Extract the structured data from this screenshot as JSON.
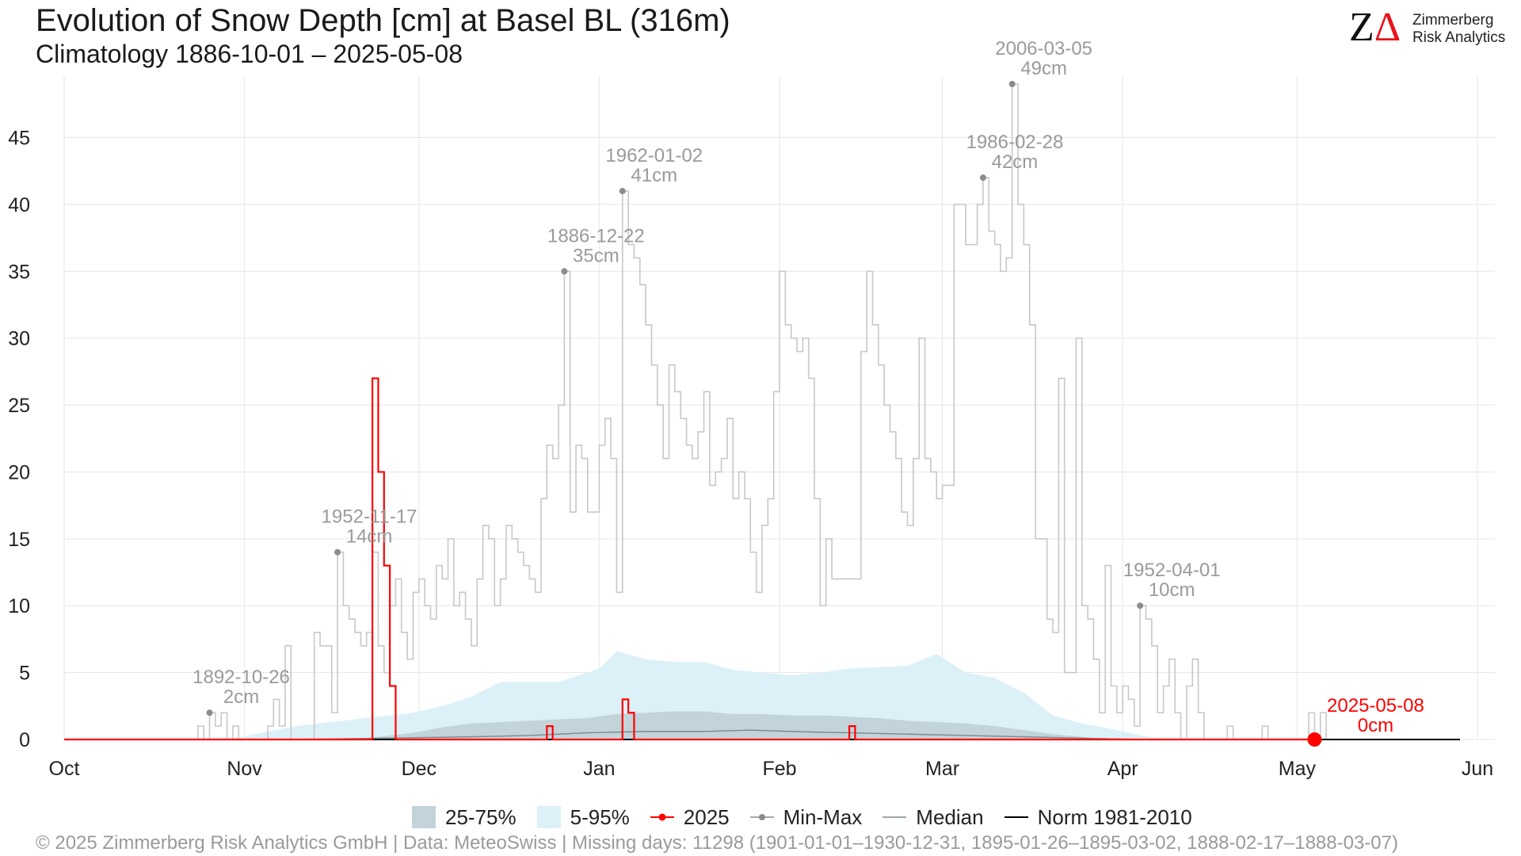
{
  "header": {
    "title": "Evolution of Snow Depth [cm] at Basel  BL (316m)",
    "subtitle": "Climatology 1886-10-01 – 2025-05-08"
  },
  "logo": {
    "line1": "Zimmerberg",
    "line2": "Risk Analytics"
  },
  "legend": {
    "iqr_label": "25-75%",
    "p90_label": "5-95%",
    "current_label": "2025",
    "minmax_label": "Min-Max",
    "median_label": "Median",
    "norm_label": "Norm 1981-2010"
  },
  "footer": {
    "text": "©  2025 Zimmerberg Risk Analytics GmbH | Data: MeteoSwiss | Missing days: 11298 (1901-01-01–1930-12-31, 1895-01-26–1895-03-02, 1888-02-17–1888-03-07)"
  },
  "colors": {
    "current": "#ff0000",
    "minmax": "#c8c8c8",
    "minmax_point": "#8c8c8c",
    "annotation": "#9a9a9a",
    "iqr_band": "#c2d3d9",
    "p90_band": "#dcf0f7",
    "median": "#7a8a8e",
    "norm": "#000000",
    "grid": "#e6e6e6"
  },
  "chart_data": {
    "type": "line",
    "x_unit": "day of season (0 = Oct 1)",
    "x_ticks": [
      {
        "label": "Oct",
        "x": 0
      },
      {
        "label": "Nov",
        "x": 31
      },
      {
        "label": "Dec",
        "x": 61
      },
      {
        "label": "Jan",
        "x": 92
      },
      {
        "label": "Feb",
        "x": 123
      },
      {
        "label": "Mar",
        "x": 151
      },
      {
        "label": "Apr",
        "x": 182
      },
      {
        "label": "May",
        "x": 212
      },
      {
        "label": "Jun",
        "x": 243
      }
    ],
    "xlim": [
      0,
      246
    ],
    "ylim": [
      0,
      49
    ],
    "y_ticks": [
      0,
      5,
      10,
      15,
      20,
      25,
      30,
      35,
      40,
      45
    ],
    "grid": true,
    "legend_position": "bottom",
    "series": [
      {
        "name": "Min-Max",
        "kind": "step",
        "points": [
          [
            22,
            0
          ],
          [
            23,
            1
          ],
          [
            24,
            0
          ],
          [
            25,
            2
          ],
          [
            26,
            1
          ],
          [
            27,
            2
          ],
          [
            28,
            0
          ],
          [
            29,
            1
          ],
          [
            30,
            0
          ],
          [
            35,
            1
          ],
          [
            36,
            3
          ],
          [
            37,
            1
          ],
          [
            38,
            7
          ],
          [
            39,
            0
          ],
          [
            43,
            8
          ],
          [
            44,
            7
          ],
          [
            45,
            7
          ],
          [
            46,
            2
          ],
          [
            47,
            14
          ],
          [
            48,
            10
          ],
          [
            49,
            9
          ],
          [
            50,
            8
          ],
          [
            51,
            7
          ],
          [
            52,
            8
          ],
          [
            53,
            14
          ],
          [
            54,
            7
          ],
          [
            55,
            5
          ],
          [
            56,
            10
          ],
          [
            57,
            12
          ],
          [
            58,
            8
          ],
          [
            59,
            6
          ],
          [
            60,
            11
          ],
          [
            61,
            12
          ],
          [
            62,
            10
          ],
          [
            63,
            9
          ],
          [
            64,
            13
          ],
          [
            65,
            12
          ],
          [
            66,
            15
          ],
          [
            67,
            10
          ],
          [
            68,
            11
          ],
          [
            69,
            9
          ],
          [
            70,
            7
          ],
          [
            71,
            12
          ],
          [
            72,
            16
          ],
          [
            73,
            15
          ],
          [
            74,
            10
          ],
          [
            75,
            12
          ],
          [
            76,
            16
          ],
          [
            77,
            15
          ],
          [
            78,
            14
          ],
          [
            79,
            13
          ],
          [
            80,
            12
          ],
          [
            81,
            11
          ],
          [
            82,
            18
          ],
          [
            83,
            22
          ],
          [
            84,
            21
          ],
          [
            85,
            25
          ],
          [
            86,
            35
          ],
          [
            87,
            17
          ],
          [
            88,
            22
          ],
          [
            89,
            21
          ],
          [
            90,
            17
          ],
          [
            91,
            17
          ],
          [
            92,
            22
          ],
          [
            93,
            24
          ],
          [
            94,
            21
          ],
          [
            95,
            11
          ],
          [
            96,
            41
          ],
          [
            97,
            37
          ],
          [
            98,
            36
          ],
          [
            99,
            34
          ],
          [
            100,
            31
          ],
          [
            101,
            28
          ],
          [
            102,
            25
          ],
          [
            103,
            21
          ],
          [
            104,
            28
          ],
          [
            105,
            26
          ],
          [
            106,
            24
          ],
          [
            107,
            22
          ],
          [
            108,
            21
          ],
          [
            109,
            23
          ],
          [
            110,
            26
          ],
          [
            111,
            19
          ],
          [
            112,
            20
          ],
          [
            113,
            21
          ],
          [
            114,
            24
          ],
          [
            115,
            18
          ],
          [
            116,
            20
          ],
          [
            117,
            18
          ],
          [
            118,
            14
          ],
          [
            119,
            11
          ],
          [
            120,
            16
          ],
          [
            121,
            18
          ],
          [
            122,
            26
          ],
          [
            123,
            35
          ],
          [
            124,
            31
          ],
          [
            125,
            30
          ],
          [
            126,
            29
          ],
          [
            127,
            30
          ],
          [
            128,
            27
          ],
          [
            129,
            18
          ],
          [
            130,
            10
          ],
          [
            131,
            15
          ],
          [
            132,
            12
          ],
          [
            133,
            12
          ],
          [
            134,
            12
          ],
          [
            135,
            12
          ],
          [
            136,
            12
          ],
          [
            137,
            29
          ],
          [
            138,
            35
          ],
          [
            139,
            31
          ],
          [
            140,
            28
          ],
          [
            141,
            25
          ],
          [
            142,
            23
          ],
          [
            143,
            21
          ],
          [
            144,
            17
          ],
          [
            145,
            16
          ],
          [
            146,
            21
          ],
          [
            147,
            30
          ],
          [
            148,
            21
          ],
          [
            149,
            20
          ],
          [
            150,
            18
          ],
          [
            151,
            19
          ],
          [
            152,
            19
          ],
          [
            153,
            40
          ],
          [
            154,
            40
          ],
          [
            155,
            37
          ],
          [
            156,
            37
          ],
          [
            157,
            40
          ],
          [
            158,
            42
          ],
          [
            159,
            38
          ],
          [
            160,
            37
          ],
          [
            161,
            35
          ],
          [
            162,
            36
          ],
          [
            163,
            49
          ],
          [
            164,
            40
          ],
          [
            165,
            37
          ],
          [
            166,
            31
          ],
          [
            167,
            15
          ],
          [
            168,
            15
          ],
          [
            169,
            9
          ],
          [
            170,
            8
          ],
          [
            171,
            27
          ],
          [
            172,
            5
          ],
          [
            173,
            5
          ],
          [
            174,
            30
          ],
          [
            175,
            10
          ],
          [
            176,
            9
          ],
          [
            177,
            6
          ],
          [
            178,
            2
          ],
          [
            179,
            13
          ],
          [
            180,
            4
          ],
          [
            181,
            2
          ],
          [
            182,
            4
          ],
          [
            183,
            3
          ],
          [
            184,
            1
          ],
          [
            185,
            10
          ],
          [
            186,
            9
          ],
          [
            187,
            7
          ],
          [
            188,
            2
          ],
          [
            189,
            4
          ],
          [
            190,
            6
          ],
          [
            191,
            2
          ],
          [
            192,
            0
          ],
          [
            193,
            4
          ],
          [
            194,
            6
          ],
          [
            195,
            2
          ],
          [
            196,
            0
          ],
          [
            200,
            1
          ],
          [
            201,
            0
          ],
          [
            206,
            1
          ],
          [
            207,
            0
          ],
          [
            214,
            2
          ],
          [
            215,
            0
          ],
          [
            216,
            2
          ],
          [
            217,
            0
          ],
          [
            219,
            0
          ]
        ]
      },
      {
        "name": "2025",
        "kind": "step",
        "points": [
          [
            0,
            0
          ],
          [
            52,
            0
          ],
          [
            53,
            27
          ],
          [
            54,
            20
          ],
          [
            55,
            13
          ],
          [
            56,
            4
          ],
          [
            57,
            0
          ],
          [
            82,
            0
          ],
          [
            83,
            1
          ],
          [
            84,
            0
          ],
          [
            95,
            0
          ],
          [
            96,
            3
          ],
          [
            97,
            2
          ],
          [
            98,
            0
          ],
          [
            134,
            0
          ],
          [
            135,
            1
          ],
          [
            136,
            0
          ],
          [
            215,
            0
          ]
        ],
        "current": {
          "date": "2025-05-08",
          "x": 215,
          "y": 0,
          "value_label": "0cm"
        }
      },
      {
        "name": "Norm 1981-2010",
        "kind": "line",
        "points": [
          [
            0,
            0
          ],
          [
            240,
            0
          ]
        ]
      },
      {
        "name": "Median",
        "kind": "line",
        "points": [
          [
            40,
            0
          ],
          [
            55,
            0.1
          ],
          [
            70,
            0.2
          ],
          [
            80,
            0.3
          ],
          [
            90,
            0.5
          ],
          [
            100,
            0.6
          ],
          [
            110,
            0.6
          ],
          [
            118,
            0.7
          ],
          [
            125,
            0.6
          ],
          [
            135,
            0.5
          ],
          [
            145,
            0.4
          ],
          [
            155,
            0.3
          ],
          [
            165,
            0.2
          ],
          [
            175,
            0.1
          ],
          [
            185,
            0
          ]
        ]
      }
    ],
    "bands": [
      {
        "name": "5-95%",
        "x": [
          28,
          40,
          50,
          60,
          65,
          70,
          75,
          80,
          85,
          90,
          92,
          95,
          100,
          105,
          110,
          115,
          120,
          125,
          130,
          135,
          140,
          145,
          150,
          155,
          160,
          165,
          170,
          175,
          180,
          185,
          190
        ],
        "low": [
          0,
          0,
          0,
          0,
          0,
          0,
          0,
          0,
          0,
          0,
          0,
          0,
          0,
          0,
          0,
          0,
          0,
          0,
          0,
          0,
          0,
          0,
          0,
          0,
          0,
          0,
          0,
          0,
          0,
          0,
          0
        ],
        "high": [
          0,
          1,
          1.5,
          2,
          2.5,
          3.2,
          4.3,
          4.3,
          4.3,
          5,
          5.3,
          6.6,
          6,
          5.8,
          5.8,
          5.2,
          5,
          4.8,
          5,
          5.3,
          5.4,
          5.5,
          6.4,
          5,
          4.6,
          3.5,
          1.8,
          1.2,
          0.8,
          0.3,
          0
        ]
      },
      {
        "name": "25-75%",
        "x": [
          50,
          60,
          65,
          70,
          80,
          85,
          90,
          95,
          100,
          105,
          110,
          115,
          120,
          125,
          130,
          135,
          140,
          145,
          150,
          155,
          160,
          165,
          170,
          175,
          180
        ],
        "low": [
          0,
          0,
          0,
          0,
          0,
          0,
          0,
          0,
          0,
          0,
          0,
          0,
          0,
          0,
          0,
          0,
          0,
          0,
          0,
          0,
          0,
          0,
          0,
          0,
          0
        ],
        "high": [
          0,
          0.5,
          0.9,
          1.2,
          1.4,
          1.5,
          1.6,
          1.9,
          2,
          2.1,
          2.1,
          1.9,
          1.9,
          1.8,
          1.8,
          1.7,
          1.6,
          1.4,
          1.3,
          1.2,
          1,
          0.7,
          0.4,
          0.2,
          0
        ]
      }
    ],
    "annotations": [
      {
        "date": "1892-10-26",
        "value": "2cm",
        "x": 25,
        "y": 2
      },
      {
        "date": "1952-11-17",
        "value": "14cm",
        "x": 47,
        "y": 14
      },
      {
        "date": "1886-12-22",
        "value": "35cm",
        "x": 86,
        "y": 35
      },
      {
        "date": "1962-01-02",
        "value": "41cm",
        "x": 96,
        "y": 41
      },
      {
        "date": "1986-02-28",
        "value": "42cm",
        "x": 158,
        "y": 42
      },
      {
        "date": "2006-03-05",
        "value": "49cm",
        "x": 163,
        "y": 49
      },
      {
        "date": "1952-04-01",
        "value": "10cm",
        "x": 185,
        "y": 10
      }
    ]
  }
}
